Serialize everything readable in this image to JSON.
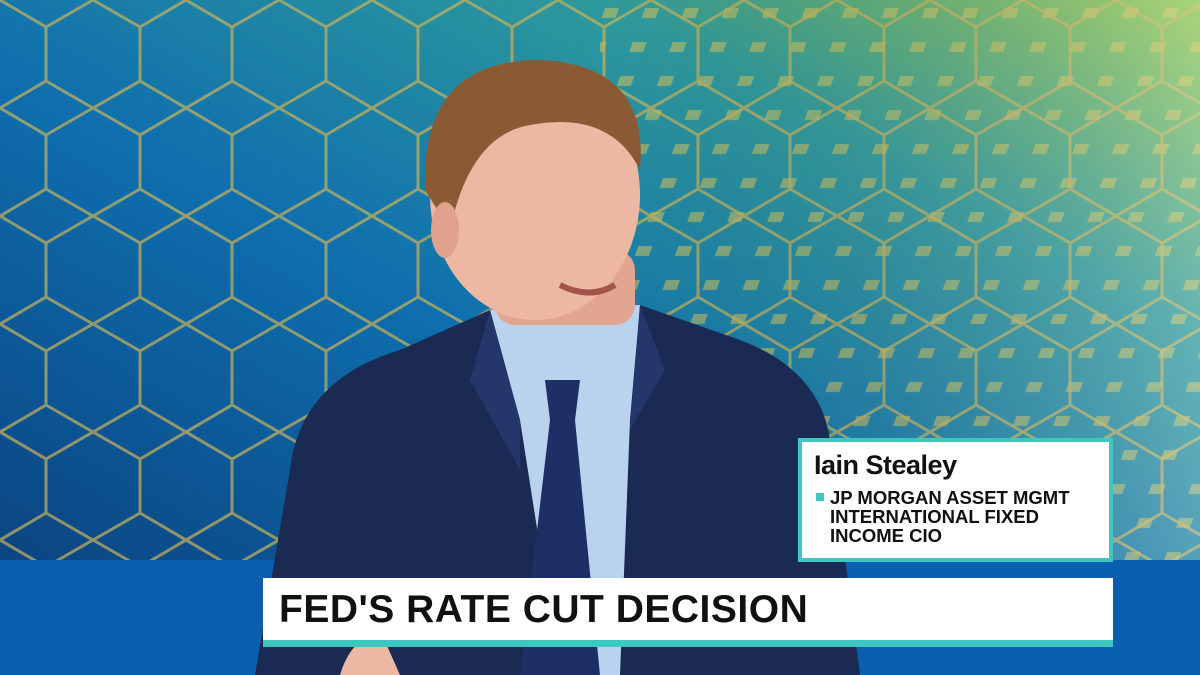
{
  "lower_third": {
    "name": "Iain Stealey",
    "affiliation": [
      "JP MORGAN ASSET MGMT",
      "INTERNATIONAL FIXED",
      "INCOME CIO"
    ]
  },
  "headline": "FED'S RATE CUT DECISION"
}
